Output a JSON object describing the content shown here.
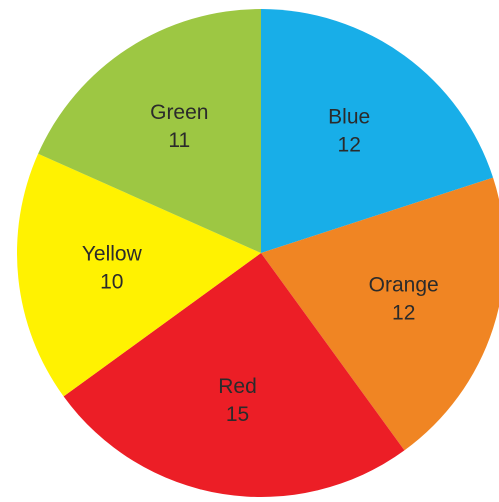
{
  "chart_data": {
    "type": "pie",
    "start": "top",
    "direction": "clockwise",
    "slices": [
      {
        "label": "Blue",
        "value": 12,
        "color": "#18aee8"
      },
      {
        "label": "Orange",
        "value": 12,
        "color": "#f08523"
      },
      {
        "label": "Red",
        "value": 15,
        "color": "#ec1e26"
      },
      {
        "label": "Yellow",
        "value": 10,
        "color": "#fff201"
      },
      {
        "label": "Green",
        "value": 11,
        "color": "#9dc743"
      }
    ],
    "value_labels": [
      "12",
      "12",
      "15",
      "10",
      "11"
    ]
  }
}
